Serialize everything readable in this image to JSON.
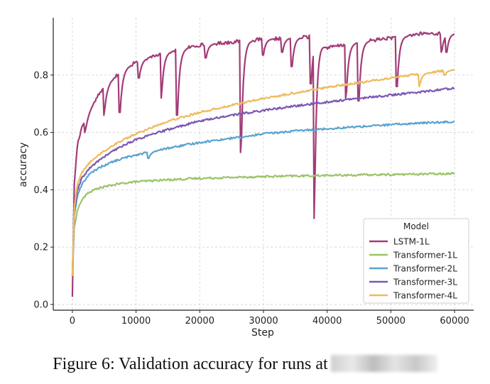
{
  "chart_data": {
    "type": "line",
    "title": "",
    "xlabel": "Step",
    "ylabel": "accuracy",
    "xlim": [
      -3000,
      63000
    ],
    "ylim": [
      -0.02,
      1.0
    ],
    "xticks": [
      0,
      10000,
      20000,
      30000,
      40000,
      50000,
      60000
    ],
    "xtick_labels": [
      "0",
      "10000",
      "20000",
      "30000",
      "40000",
      "50000",
      "60000"
    ],
    "yticks": [
      0.0,
      0.2,
      0.4,
      0.6,
      0.8
    ],
    "ytick_labels": [
      "0.0",
      "0.2",
      "0.4",
      "0.6",
      "0.8"
    ],
    "grid": true,
    "legend": {
      "title": "Model",
      "location": "lower-right"
    },
    "series": [
      {
        "name": "LSTM-1L",
        "color": "#a23c78",
        "x": [
          0,
          300,
          800,
          1500,
          2500,
          4000,
          6000,
          8000,
          10000,
          13000,
          16000,
          20000,
          25000,
          30000,
          35000,
          38000,
          40000,
          45000,
          50000,
          55000,
          60000
        ],
        "y": [
          0.03,
          0.42,
          0.56,
          0.62,
          0.67,
          0.73,
          0.78,
          0.82,
          0.845,
          0.87,
          0.885,
          0.905,
          0.915,
          0.925,
          0.93,
          0.935,
          0.895,
          0.915,
          0.93,
          0.945,
          0.945
        ],
        "dips": [
          [
            2000,
            0.6
          ],
          [
            5000,
            0.66
          ],
          [
            7500,
            0.67
          ],
          [
            10500,
            0.79
          ],
          [
            14000,
            0.72
          ],
          [
            16500,
            0.66
          ],
          [
            21000,
            0.86
          ],
          [
            26500,
            0.53
          ],
          [
            30000,
            0.87
          ],
          [
            33000,
            0.88
          ],
          [
            34500,
            0.83
          ],
          [
            37500,
            0.77
          ],
          [
            38000,
            0.3
          ],
          [
            43000,
            0.72
          ],
          [
            45000,
            0.71
          ],
          [
            51000,
            0.76
          ],
          [
            58000,
            0.88
          ],
          [
            58800,
            0.88
          ]
        ]
      },
      {
        "name": "Transformer-1L",
        "color": "#9bc469",
        "x": [
          0,
          300,
          800,
          1500,
          2500,
          4000,
          6000,
          8000,
          10000,
          15000,
          20000,
          25000,
          30000,
          40000,
          50000,
          60000
        ],
        "y": [
          0.1,
          0.27,
          0.33,
          0.365,
          0.39,
          0.405,
          0.415,
          0.423,
          0.428,
          0.435,
          0.44,
          0.443,
          0.446,
          0.45,
          0.453,
          0.457
        ],
        "dips": []
      },
      {
        "name": "Transformer-2L",
        "color": "#5aa3cf",
        "x": [
          0,
          300,
          800,
          1500,
          2500,
          4000,
          6000,
          8000,
          10000,
          15000,
          20000,
          25000,
          30000,
          35000,
          40000,
          45000,
          50000,
          55000,
          60000
        ],
        "y": [
          0.12,
          0.31,
          0.38,
          0.42,
          0.45,
          0.475,
          0.495,
          0.51,
          0.522,
          0.545,
          0.565,
          0.58,
          0.595,
          0.605,
          0.613,
          0.62,
          0.627,
          0.633,
          0.638
        ],
        "dips": [
          [
            12000,
            0.51
          ],
          [
            26500,
            0.58
          ]
        ]
      },
      {
        "name": "Transformer-3L",
        "color": "#7b58b3",
        "x": [
          0,
          300,
          800,
          1500,
          2500,
          4000,
          6000,
          8000,
          10000,
          15000,
          20000,
          25000,
          30000,
          35000,
          40000,
          45000,
          50000,
          55000,
          60000
        ],
        "y": [
          0.1,
          0.32,
          0.4,
          0.44,
          0.47,
          0.5,
          0.53,
          0.555,
          0.575,
          0.61,
          0.64,
          0.66,
          0.677,
          0.692,
          0.706,
          0.719,
          0.73,
          0.742,
          0.755
        ],
        "dips": []
      },
      {
        "name": "Transformer-4L",
        "color": "#efbb5c",
        "x": [
          0,
          300,
          800,
          1500,
          2500,
          4000,
          6000,
          8000,
          10000,
          15000,
          20000,
          25000,
          30000,
          35000,
          40000,
          45000,
          50000,
          55000,
          60000
        ],
        "y": [
          0.1,
          0.34,
          0.42,
          0.46,
          0.49,
          0.52,
          0.55,
          0.575,
          0.595,
          0.64,
          0.67,
          0.695,
          0.718,
          0.738,
          0.757,
          0.774,
          0.79,
          0.806,
          0.82
        ],
        "dips": [
          [
            54500,
            0.76
          ],
          [
            58500,
            0.8
          ]
        ]
      }
    ]
  },
  "caption": {
    "text": "Figure 6: Validation accuracy for runs at"
  }
}
